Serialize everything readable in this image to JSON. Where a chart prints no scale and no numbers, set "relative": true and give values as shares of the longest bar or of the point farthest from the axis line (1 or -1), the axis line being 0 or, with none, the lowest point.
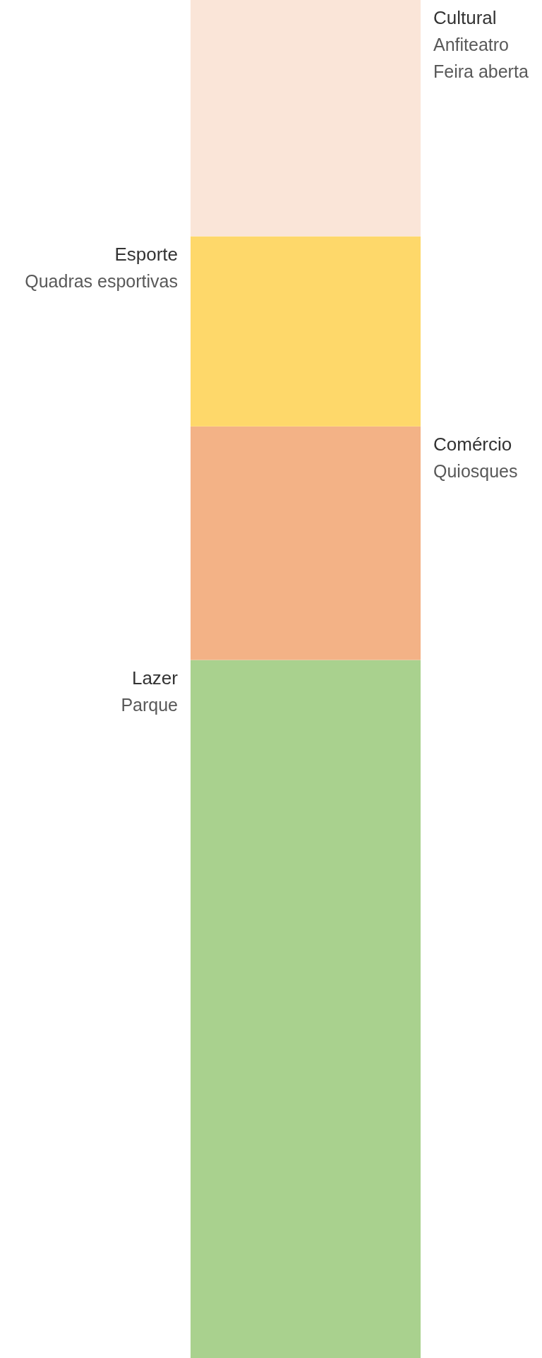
{
  "chart_data": {
    "type": "bar",
    "stacked": true,
    "relative": true,
    "categories": [
      null
    ],
    "series": [
      {
        "name": "Lazer",
        "color": "#a9d18e",
        "values": [
          0.514
        ]
      },
      {
        "name": "Comércio",
        "color": "#f3b286",
        "values": [
          0.172
        ]
      },
      {
        "name": "Esporte",
        "color": "#fed86a",
        "values": [
          0.14
        ]
      },
      {
        "name": "Cultural",
        "color": "#fae5d8",
        "values": [
          0.174
        ]
      }
    ],
    "annotations": [
      "Parque",
      "Quiosques",
      "Quadras esportivas",
      "Anfiteatro\nFeira aberta"
    ]
  }
}
